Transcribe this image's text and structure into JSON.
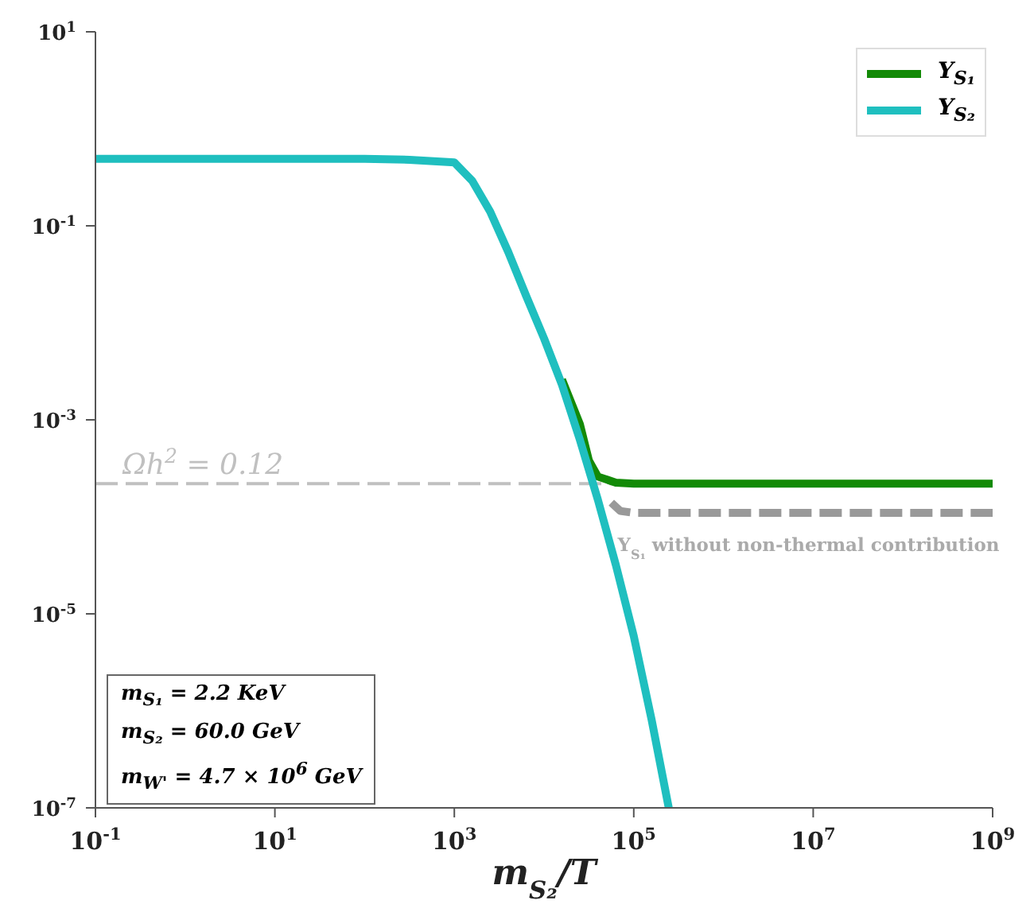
{
  "chart_data": {
    "type": "line",
    "xlabel": "m$_{S₂}$/T",
    "xlim": [
      0.1,
      1000000000
    ],
    "log": "xy",
    "xticks": [
      {
        "value": 0.1,
        "label": "10$^{-1}$"
      },
      {
        "value": 10,
        "label": "10$^{1}$"
      },
      {
        "value": 1000,
        "label": "10$^{3}$"
      },
      {
        "value": 100000,
        "label": "10$^{5}$"
      },
      {
        "value": 10000000,
        "label": "10$^{7}$"
      },
      {
        "value": 1000000000,
        "label": "10$^{9}$"
      }
    ],
    "ylim": [
      1e-07,
      10
    ],
    "yticks": [
      {
        "value": 1e-07,
        "label": "10$^{-7}$"
      },
      {
        "value": 1e-05,
        "label": "10$^{-5}$"
      },
      {
        "value": 0.001,
        "label": "10$^{-3}$"
      },
      {
        "value": 0.1,
        "label": "10$^{-1}$"
      },
      {
        "value": 10,
        "label": "10$^{1}$"
      }
    ],
    "legend": "top right",
    "line_style": "solid",
    "series": [
      {
        "name": "Y$_{S₁}$",
        "color": "#138a07",
        "x": [
          15849,
          25119,
          31623,
          39811,
          63096,
          100000,
          1000000,
          100000000,
          1000000000
        ],
        "values": [
          0.0026,
          0.0009,
          0.00038,
          0.00026,
          0.000225,
          0.00022,
          0.00022,
          0.00022,
          0.00022
        ]
      },
      {
        "name": "Y$_{S₂}$",
        "color": "#1fbfbf",
        "x": [
          0.1,
          1,
          10,
          100,
          316,
          1000,
          1585,
          2512,
          3981,
          6310,
          10000,
          15849,
          25119,
          39811,
          63096,
          100000,
          158489,
          245471
        ],
        "values": [
          0.49,
          0.49,
          0.49,
          0.49,
          0.48,
          0.45,
          0.29,
          0.14,
          0.054,
          0.019,
          0.0069,
          0.0023,
          0.00062,
          0.00015,
          3.2e-05,
          5.9e-06,
          8e-07,
          1e-07
        ]
      },
      {
        "color": "#999999",
        "line_style": "dashed",
        "x": [
          56234,
          70795,
          100000,
          1000000,
          100000000,
          1000000000
        ],
        "values": [
          0.00014,
          0.000115,
          0.00011,
          0.00011,
          0.00011,
          0.00011
        ]
      }
    ],
    "ref_lines": [
      {
        "axis": "y",
        "value": 0.00022,
        "color": "#c0c0c0",
        "line_style": "dashed"
      }
    ],
    "annotations": [
      {
        "text": "Ωh$^{2}$ = 0.12",
        "x": 0.2,
        "y": 0.00022
      },
      {
        "text": "Y$_{S₁}$ without non-thermal contribution",
        "x": 56234,
        "y": 0.00011
      },
      "m$_{S₁}$ = 2.2 KeV",
      "m$_{S₂}$ = 60.0 GeV",
      "m$_{W'}$ = 4.7 × 10$^{6}$ GeV"
    ]
  }
}
